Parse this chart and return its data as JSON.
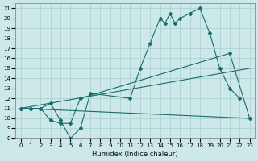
{
  "xlabel": "Humidex (Indice chaleur)",
  "background_color": "#cde8e8",
  "grid_color": "#aacece",
  "line_color": "#1a6b6b",
  "xlim": [
    -0.5,
    23.5
  ],
  "ylim": [
    8,
    21.5
  ],
  "xticks": [
    0,
    1,
    2,
    3,
    4,
    5,
    6,
    7,
    8,
    9,
    10,
    11,
    12,
    13,
    14,
    15,
    16,
    17,
    18,
    19,
    20,
    21,
    22,
    23
  ],
  "yticks": [
    8,
    9,
    10,
    11,
    12,
    13,
    14,
    15,
    16,
    17,
    18,
    19,
    20,
    21
  ],
  "line1_x": [
    0,
    1,
    2,
    3,
    4,
    5,
    6,
    7,
    11,
    12,
    13,
    14,
    14.5,
    15,
    15.5,
    16,
    17,
    18,
    19,
    20,
    21,
    22
  ],
  "line1_y": [
    11,
    11,
    11,
    11.5,
    9.8,
    8,
    9,
    12.5,
    12,
    15,
    17.5,
    20,
    19.5,
    20.5,
    19.5,
    20,
    20.5,
    21,
    18.5,
    15,
    13,
    12
  ],
  "line2_x": [
    0,
    1,
    2,
    3,
    4,
    5,
    6,
    21,
    23
  ],
  "line2_y": [
    11,
    11,
    11,
    9.8,
    9.5,
    9.5,
    12,
    16.5,
    10
  ],
  "line3_x": [
    0,
    23
  ],
  "line3_y": [
    11,
    10
  ],
  "line4_x": [
    0,
    23
  ],
  "line4_y": [
    11,
    15
  ]
}
